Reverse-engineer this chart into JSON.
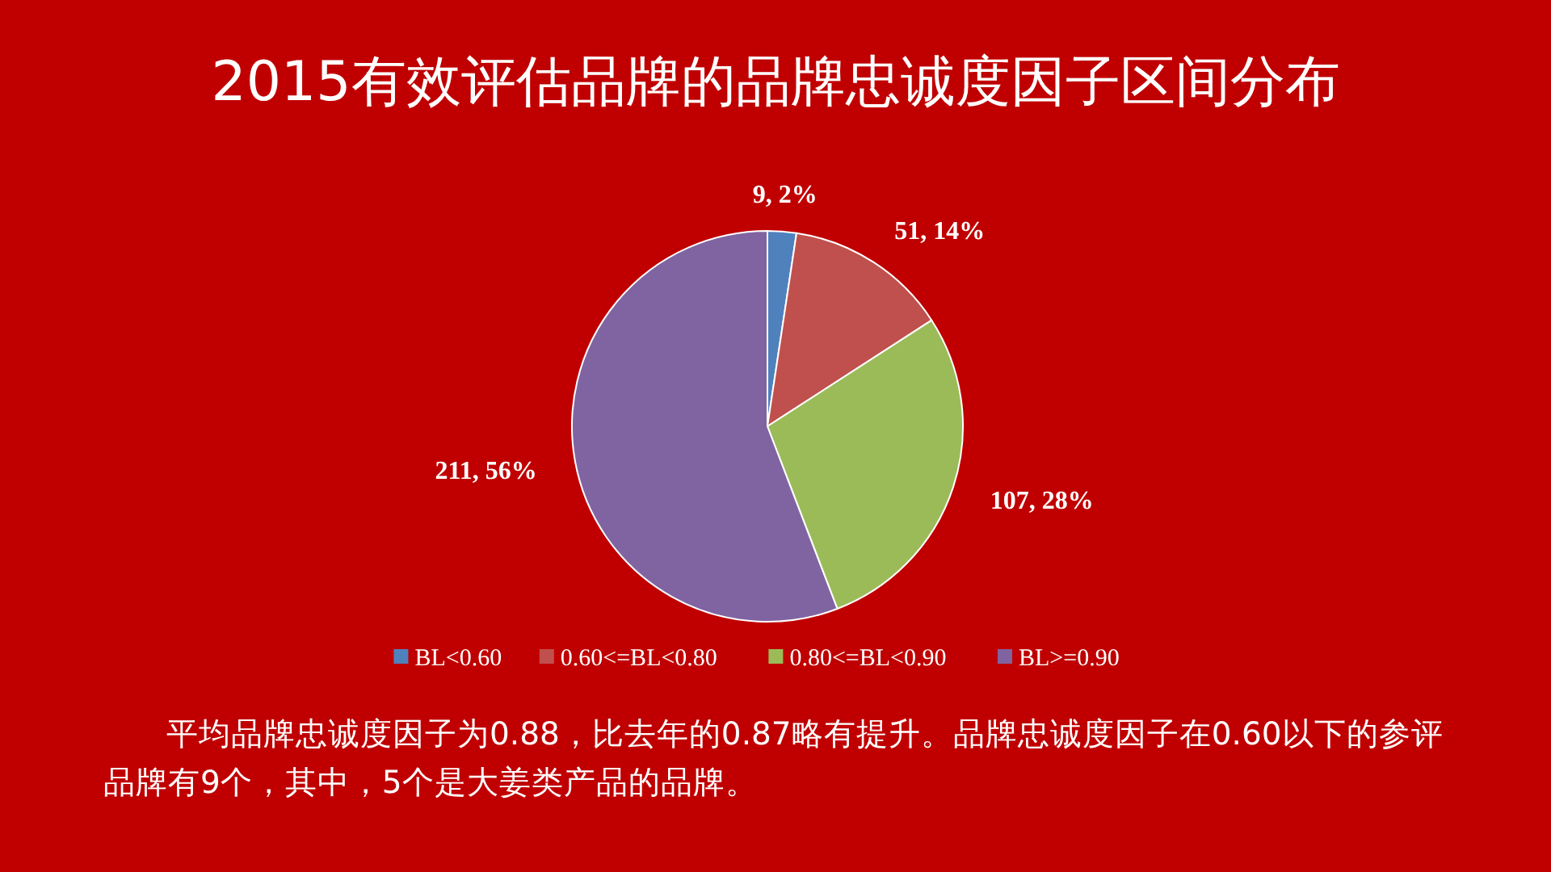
{
  "chart_data": {
    "type": "pie",
    "title": "2015有效评估品牌的品牌忠诚度因子区间分布",
    "categories": [
      "BL<0.60",
      "0.60<=BL<0.80",
      "0.80<=BL<0.90",
      "BL>=0.90"
    ],
    "values": [
      9,
      51,
      107,
      211
    ],
    "colors": [
      "#4f81bd",
      "#c0504d",
      "#9bbb59",
      "#8064a2"
    ],
    "value_labels": [
      "9, 2%",
      "51, 14%",
      "107, 28%",
      "211, 56%"
    ],
    "legend": "bottom",
    "annotations": [
      "平均品牌忠诚度因子为0.88，比去年的0.87略有提升。品牌忠诚度因子在0.60以下的参评品牌有9个，其中，5个是大姜类产品的品牌。"
    ]
  }
}
